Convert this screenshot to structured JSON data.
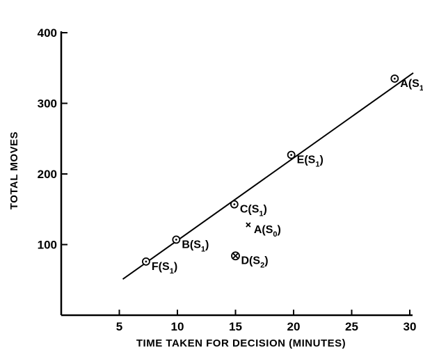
{
  "chart_data": {
    "type": "scatter",
    "title": "",
    "xlabel": "TIME TAKEN FOR DECISION (MINUTES)",
    "ylabel": "TOTAL MOVES",
    "xlim": [
      0,
      30
    ],
    "ylim": [
      0,
      400
    ],
    "xticks": [
      5,
      10,
      15,
      20,
      25,
      30
    ],
    "yticks": [
      100,
      200,
      300,
      400
    ],
    "grid": false,
    "points": [
      {
        "label": "F",
        "sub": "1",
        "x": 7.3,
        "y": 76,
        "marker": "circle-dot"
      },
      {
        "label": "B",
        "sub": "1",
        "x": 9.9,
        "y": 107,
        "marker": "circle-dot"
      },
      {
        "label": "C",
        "sub": "1",
        "x": 14.9,
        "y": 157,
        "marker": "circle-dot"
      },
      {
        "label": "E",
        "sub": "1",
        "x": 19.8,
        "y": 227,
        "marker": "circle-dot"
      },
      {
        "label": "A",
        "sub": "1",
        "x": 28.7,
        "y": 335,
        "marker": "circle-dot"
      },
      {
        "label": "A",
        "sub": "0",
        "x": 16.1,
        "y": 128,
        "marker": "cross"
      },
      {
        "label": "D",
        "sub": "2",
        "x": 15.0,
        "y": 84,
        "marker": "circle-x"
      }
    ],
    "fit_line": {
      "x": [
        5.3,
        30.3
      ],
      "y": [
        51,
        343
      ]
    }
  }
}
